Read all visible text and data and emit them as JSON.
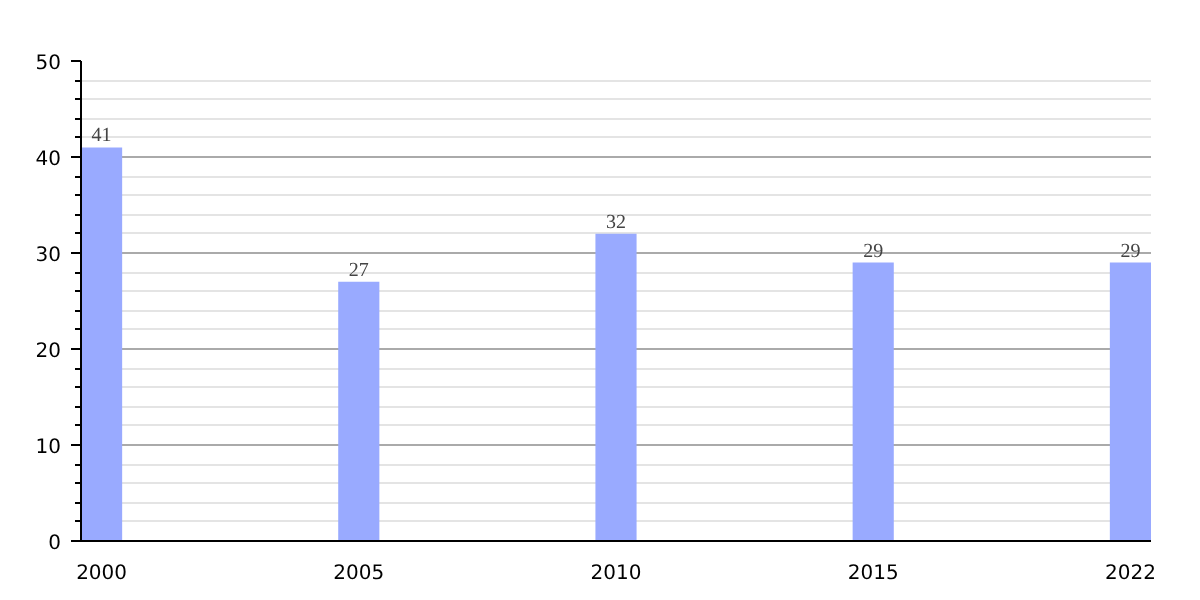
{
  "chart_data": {
    "type": "bar",
    "categories": [
      "2000",
      "2005",
      "2010",
      "2015",
      "2022"
    ],
    "values": [
      41,
      27,
      32,
      29,
      29
    ],
    "color": "#99aaff",
    "ylim": [
      0,
      50
    ],
    "yticks": [
      0,
      10,
      20,
      30,
      40,
      50
    ],
    "grid": "y",
    "data_labels": true
  }
}
